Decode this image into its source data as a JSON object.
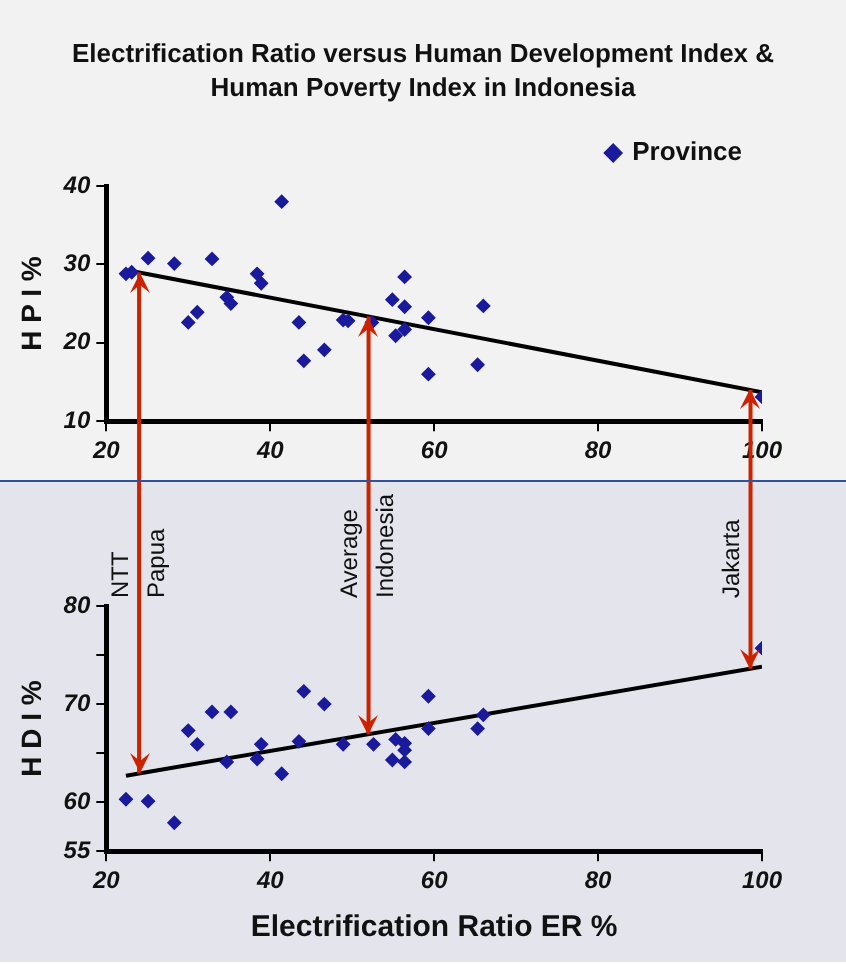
{
  "chart_data": [
    {
      "type": "scatter",
      "title": "Electrification Ratio versus Human Development Index & Human Poverty Index in Indonesia",
      "ylabel": "H P I %",
      "xlim": [
        20,
        100
      ],
      "xticks": [
        20,
        40,
        60,
        80,
        100
      ],
      "ylim": [
        10,
        40
      ],
      "yticks": [
        10,
        20,
        30,
        40
      ],
      "grid": false,
      "legend": "top right",
      "marker": "diamond",
      "series": [
        {
          "name": "Province",
          "color": "#1a1a9c",
          "x": [
            22.4,
            23.1,
            25.1,
            28.3,
            30.0,
            31.1,
            32.9,
            34.7,
            35.2,
            38.4,
            38.9,
            41.4,
            43.5,
            44.1,
            46.6,
            48.9,
            49.5,
            52.4,
            54.9,
            55.3,
            56.4,
            56.4,
            56.4,
            59.3,
            59.3,
            65.3,
            66.0,
            100
          ],
          "values": [
            28.8,
            29.0,
            30.8,
            30.1,
            22.6,
            23.9,
            30.7,
            25.8,
            25.0,
            28.8,
            27.6,
            38.0,
            22.6,
            17.7,
            19.1,
            22.9,
            22.8,
            22.6,
            25.5,
            20.9,
            28.4,
            24.6,
            21.7,
            23.2,
            16.0,
            17.2,
            24.7,
            13.1
          ]
        },
        {
          "type": "line",
          "color": "#000000",
          "marker": "none",
          "x": [
            22.9,
            100
          ],
          "values": [
            29.2,
            13.7
          ]
        }
      ],
      "ref_lines": [
        {
          "axis": "x",
          "value": 24,
          "color": "#cc2200"
        },
        {
          "axis": "x",
          "value": 52,
          "color": "#cc2200"
        },
        {
          "axis": "x",
          "value": 98.6,
          "color": "#cc2200"
        }
      ]
    },
    {
      "type": "scatter",
      "xlabel": "Electrification Ratio ER %",
      "ylabel": "H D I %",
      "xlim": [
        20,
        100
      ],
      "xticks": [
        20,
        40,
        60,
        80,
        100
      ],
      "ylim": [
        55,
        80
      ],
      "yticks": [
        55,
        60,
        {
          "value": 65,
          "label": null
        },
        70,
        {
          "value": 75,
          "label": null
        },
        80
      ],
      "grid": false,
      "marker": "diamond",
      "series": [
        {
          "color": "#1a1a9c",
          "x": [
            22.4,
            25.1,
            28.3,
            30.0,
            31.1,
            32.9,
            34.7,
            35.2,
            38.4,
            38.9,
            41.4,
            43.5,
            44.1,
            46.6,
            48.9,
            52.6,
            54.9,
            55.3,
            56.4,
            56.4,
            56.4,
            59.3,
            59.3,
            65.3,
            66.0,
            100
          ],
          "values": [
            60.3,
            60.1,
            57.9,
            67.3,
            65.9,
            69.2,
            64.1,
            69.2,
            64.4,
            65.9,
            62.9,
            66.2,
            71.3,
            70.0,
            65.9,
            65.9,
            64.3,
            66.4,
            66.0,
            65.3,
            64.1,
            70.8,
            67.5,
            67.5,
            68.9,
            75.7
          ]
        },
        {
          "type": "line",
          "color": "#000000",
          "marker": "none",
          "x": [
            22.4,
            100
          ],
          "values": [
            62.7,
            73.8
          ]
        }
      ],
      "ref_lines": [
        {
          "axis": "x",
          "value": 24,
          "label": "NTT Papua",
          "color": "#cc2200"
        },
        {
          "axis": "x",
          "value": 52,
          "label": "Average Indonesia",
          "color": "#cc2200"
        },
        {
          "axis": "x",
          "value": 98.6,
          "label": "Jakarta",
          "color": "#cc2200"
        }
      ]
    }
  ]
}
